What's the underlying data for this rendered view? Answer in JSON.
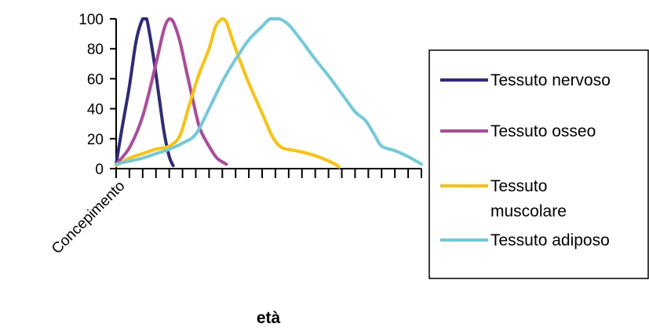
{
  "chart_data": {
    "type": "line",
    "xlabel": "età",
    "x_start_label": "Concepimento",
    "ylim": [
      0,
      100
    ],
    "yticks": [
      0,
      20,
      40,
      60,
      80,
      100
    ],
    "x_tick_count": 23,
    "xlim": [
      0,
      23
    ],
    "legend_position": "right",
    "grid": false,
    "series": [
      {
        "name": "Tessuto nervoso",
        "color": "#2e2a7d",
        "points": [
          [
            0,
            3
          ],
          [
            0.5,
            30
          ],
          [
            1,
            55
          ],
          [
            1.5,
            85
          ],
          [
            2,
            100
          ],
          [
            2.3,
            100
          ],
          [
            2.8,
            75
          ],
          [
            3.2,
            50
          ],
          [
            3.6,
            25
          ],
          [
            4,
            8
          ],
          [
            4.3,
            2
          ]
        ]
      },
      {
        "name": "Tessuto osseo",
        "color": "#b0489c",
        "points": [
          [
            0,
            3
          ],
          [
            1,
            14
          ],
          [
            2,
            35
          ],
          [
            3,
            70
          ],
          [
            3.6,
            93
          ],
          [
            4,
            100
          ],
          [
            4.3,
            98
          ],
          [
            4.8,
            85
          ],
          [
            5.3,
            65
          ],
          [
            5.8,
            45
          ],
          [
            6.3,
            27
          ],
          [
            7,
            15
          ],
          [
            7.6,
            7
          ],
          [
            8.3,
            3
          ]
        ]
      },
      {
        "name": "Tessuto muscolare",
        "color": "#fcc20a",
        "points": [
          [
            0,
            2
          ],
          [
            1,
            7
          ],
          [
            2,
            10
          ],
          [
            3,
            13
          ],
          [
            4,
            15
          ],
          [
            4.8,
            22
          ],
          [
            5.5,
            42
          ],
          [
            6.2,
            62
          ],
          [
            7,
            80
          ],
          [
            7.5,
            95
          ],
          [
            8,
            100
          ],
          [
            8.3,
            98
          ],
          [
            9,
            80
          ],
          [
            10,
            57
          ],
          [
            11,
            37
          ],
          [
            11.8,
            21
          ],
          [
            12.5,
            14
          ],
          [
            13.5,
            12
          ],
          [
            14.5,
            10
          ],
          [
            15.5,
            7
          ],
          [
            16.5,
            3
          ],
          [
            16.8,
            1
          ]
        ]
      },
      {
        "name": "Tessuto adiposo",
        "color": "#6fcbdc",
        "points": [
          [
            0,
            3
          ],
          [
            1,
            5
          ],
          [
            2,
            7
          ],
          [
            3,
            10
          ],
          [
            4,
            13
          ],
          [
            5,
            17
          ],
          [
            6,
            23
          ],
          [
            7,
            40
          ],
          [
            8,
            58
          ],
          [
            9,
            73
          ],
          [
            10,
            86
          ],
          [
            11,
            95
          ],
          [
            11.6,
            100
          ],
          [
            12.3,
            100
          ],
          [
            13,
            96
          ],
          [
            14,
            85
          ],
          [
            15,
            73
          ],
          [
            16,
            62
          ],
          [
            17,
            50
          ],
          [
            18,
            38
          ],
          [
            18.8,
            32
          ],
          [
            19.5,
            22
          ],
          [
            20,
            15
          ],
          [
            21,
            12
          ],
          [
            22,
            8
          ],
          [
            23,
            3
          ]
        ]
      }
    ]
  }
}
